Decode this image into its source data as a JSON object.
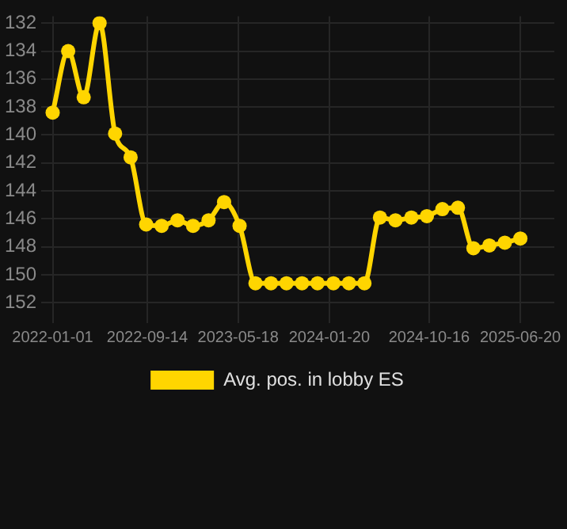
{
  "chart_data": {
    "type": "line",
    "x": [
      "2022-01-01",
      "2022-02-12",
      "2022-03-26",
      "2022-05-08",
      "2022-06-19",
      "2022-07-31",
      "2022-09-11",
      "2022-10-23",
      "2022-12-05",
      "2023-01-16",
      "2023-02-27",
      "2023-04-10",
      "2023-05-22",
      "2023-07-04",
      "2023-08-15",
      "2023-09-26",
      "2023-11-07",
      "2023-12-19",
      "2024-01-31",
      "2024-03-13",
      "2024-04-24",
      "2024-06-05",
      "2024-07-17",
      "2024-08-29",
      "2024-10-10",
      "2024-11-21",
      "2025-01-02",
      "2025-02-13",
      "2025-03-28",
      "2025-05-09",
      "2025-06-20"
    ],
    "series": [
      {
        "name": "Avg. pos. in lobby ES",
        "color": "#ffd500",
        "values": [
          138.4,
          134.0,
          137.3,
          132.0,
          139.9,
          141.6,
          146.4,
          146.5,
          146.1,
          146.5,
          146.1,
          144.8,
          146.5,
          150.6,
          150.6,
          150.6,
          150.6,
          150.6,
          150.6,
          150.6,
          150.6,
          145.9,
          146.1,
          145.9,
          145.8,
          145.3,
          145.2,
          148.1,
          147.9,
          147.7,
          147.4
        ]
      }
    ],
    "xlim": [
      "2021-12-01",
      "2025-09-20"
    ],
    "xticks": [
      "2022-01-01",
      "2022-09-14",
      "2023-05-18",
      "2024-01-20",
      "2024-10-16",
      "2025-06-20"
    ],
    "ylim": [
      153,
      131.5
    ],
    "yticks": [
      132,
      134,
      136,
      138,
      140,
      142,
      144,
      146,
      148,
      150,
      152
    ],
    "grid": true,
    "legend": "bottom",
    "marker": "circle",
    "line_style": "solid"
  }
}
